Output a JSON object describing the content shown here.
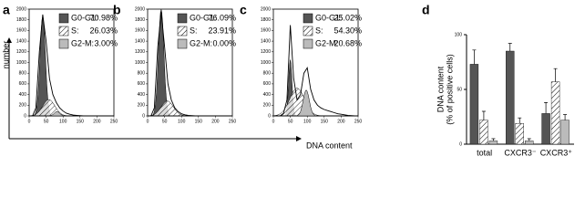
{
  "figure": {
    "y_label": "number",
    "x_label": "DNA content"
  },
  "chart_data": [
    {
      "type": "flow",
      "label": "a",
      "xlim": [
        0,
        250
      ],
      "xticks": [
        0,
        50,
        100,
        150,
        200,
        250
      ],
      "ylim": [
        0,
        2000
      ],
      "yticks": [
        0,
        200,
        400,
        600,
        800,
        1000,
        1200,
        1400,
        1600,
        1800,
        2000
      ],
      "x": [
        0,
        10,
        20,
        30,
        40,
        50,
        60,
        70,
        80,
        90,
        100,
        110,
        120,
        130,
        140,
        150,
        160,
        170,
        180,
        190,
        200,
        210,
        220,
        230,
        240,
        250
      ],
      "values": [
        0,
        0,
        150,
        1200,
        1900,
        1400,
        700,
        400,
        250,
        150,
        90,
        50,
        30,
        15,
        10,
        5,
        0,
        0,
        0,
        0,
        0,
        0,
        0,
        0,
        0,
        0
      ],
      "phases": [
        {
          "name": "G0-G1:",
          "color": "#555555",
          "values": [
            70.98
          ],
          "value_labels": [
            "70.98%"
          ]
        },
        {
          "name": "S:",
          "color": "hatch",
          "values": [
            26.03
          ],
          "value_labels": [
            "26.03%"
          ]
        },
        {
          "name": "G2-M:",
          "color": "#bbbbbb",
          "values": [
            3.0
          ],
          "value_labels": [
            "3.00%"
          ]
        }
      ]
    },
    {
      "type": "flow",
      "label": "b",
      "xlim": [
        0,
        250
      ],
      "xticks": [
        0,
        50,
        100,
        150,
        200,
        250
      ],
      "ylim": [
        0,
        2000
      ],
      "yticks": [
        0,
        200,
        400,
        600,
        800,
        1000,
        1200,
        1400,
        1600,
        1800,
        2000
      ],
      "x": [
        0,
        10,
        20,
        30,
        40,
        50,
        60,
        70,
        80,
        90,
        100,
        110,
        120,
        130,
        140,
        150,
        160,
        170,
        180,
        190,
        200,
        210,
        220,
        230,
        240,
        250
      ],
      "values": [
        0,
        0,
        150,
        1300,
        1950,
        1300,
        600,
        300,
        150,
        80,
        40,
        20,
        10,
        5,
        0,
        0,
        0,
        0,
        0,
        0,
        0,
        0,
        0,
        0,
        0,
        0
      ],
      "phases": [
        {
          "name": "G0-G1:",
          "color": "#555555",
          "values": [
            76.09
          ],
          "value_labels": [
            "76.09%"
          ]
        },
        {
          "name": "S:",
          "color": "hatch",
          "values": [
            23.91
          ],
          "value_labels": [
            "23.91%"
          ]
        },
        {
          "name": "G2-M:",
          "color": "#bbbbbb",
          "values": [
            0.0
          ],
          "value_labels": [
            "0.00%"
          ]
        }
      ]
    },
    {
      "type": "flow",
      "label": "c",
      "xlim": [
        0,
        250
      ],
      "xticks": [
        0,
        50,
        100,
        150,
        200,
        250
      ],
      "ylim": [
        0,
        2000
      ],
      "yticks": [
        0,
        200,
        400,
        600,
        800,
        1000,
        1200,
        1400,
        1600,
        1800,
        2000
      ],
      "x": [
        0,
        10,
        20,
        30,
        40,
        50,
        60,
        70,
        80,
        90,
        100,
        110,
        120,
        130,
        140,
        150,
        160,
        170,
        180,
        190,
        200,
        210,
        220,
        230,
        240,
        250
      ],
      "values": [
        0,
        0,
        0,
        50,
        300,
        1700,
        700,
        300,
        400,
        800,
        900,
        500,
        300,
        200,
        150,
        120,
        100,
        80,
        60,
        40,
        30,
        20,
        10,
        5,
        0,
        0
      ],
      "phases": [
        {
          "name": "G0-G1:",
          "color": "#555555",
          "values": [
            25.02
          ],
          "value_labels": [
            "25.02%"
          ]
        },
        {
          "name": "S:",
          "color": "hatch",
          "values": [
            54.3
          ],
          "value_labels": [
            "54.30%"
          ]
        },
        {
          "name": "G2-M:",
          "color": "#bbbbbb",
          "values": [
            20.68
          ],
          "value_labels": [
            "20.68%"
          ]
        }
      ]
    },
    {
      "type": "bar",
      "label": "d",
      "ylabel": [
        "DNA content",
        "(% of positive cells)"
      ],
      "ylim": [
        0,
        100
      ],
      "yticks": [
        0,
        50,
        100
      ],
      "categories": [
        "total",
        "CXCR3⁻",
        "CXCR3⁺"
      ],
      "series": [
        {
          "color": "#555555",
          "values": [
            73,
            85,
            28
          ],
          "errors": [
            13,
            7,
            10
          ]
        },
        {
          "color": "hatch",
          "values": [
            22,
            19,
            57
          ],
          "errors": [
            8,
            5,
            12
          ]
        },
        {
          "color": "#bbbbbb",
          "values": [
            3,
            3,
            22
          ],
          "errors": [
            2,
            2,
            5
          ]
        }
      ]
    }
  ]
}
